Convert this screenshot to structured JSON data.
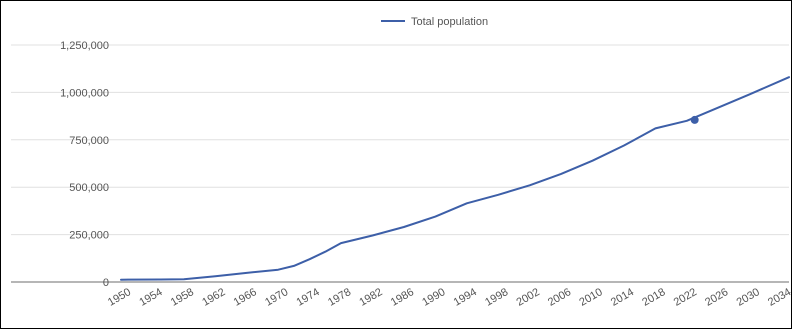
{
  "chart_data": {
    "type": "line",
    "title": "",
    "xlabel": "",
    "ylabel": "",
    "legend": {
      "position": "top-center",
      "entries": [
        "Total population"
      ]
    },
    "grid": true,
    "x_ticks": [
      "1950",
      "1954",
      "1958",
      "1962",
      "1966",
      "1970",
      "1974",
      "1978",
      "1982",
      "1986",
      "1990",
      "1994",
      "1998",
      "2002",
      "2006",
      "2010",
      "2014",
      "2018",
      "2022",
      "2026",
      "2030",
      "2034"
    ],
    "y_ticks": [
      "0",
      "250,000",
      "500,000",
      "750,000",
      "1,000,000",
      "1,250,000"
    ],
    "xlim": [
      1950,
      2035
    ],
    "ylim": [
      0,
      1250000
    ],
    "colors": {
      "series": "#3d5fa8",
      "grid": "#e0e0e0",
      "baseline": "#9e9e9e"
    },
    "series": [
      {
        "name": "Total population",
        "x": [
          1950,
          1955,
          1958,
          1962,
          1966,
          1970,
          1972,
          1974,
          1976,
          1978,
          1982,
          1986,
          1990,
          1994,
          1998,
          2002,
          2006,
          2010,
          2014,
          2018,
          2022,
          2026,
          2030,
          2035
        ],
        "y": [
          12000,
          13000,
          15000,
          30000,
          48000,
          65000,
          85000,
          120000,
          160000,
          205000,
          245000,
          290000,
          345000,
          415000,
          460000,
          510000,
          570000,
          640000,
          720000,
          810000,
          850000,
          920000,
          990000,
          1080000
        ]
      }
    ],
    "highlight_point": {
      "x": 2023,
      "y": 855000
    }
  }
}
